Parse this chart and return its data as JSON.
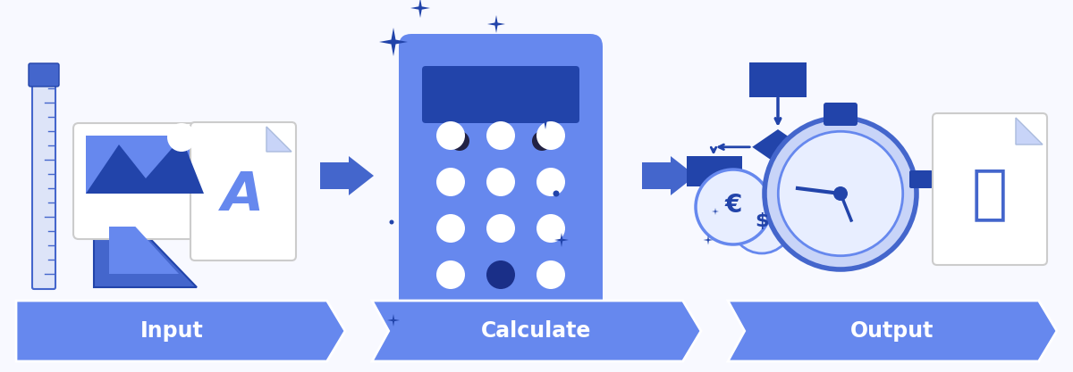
{
  "bg_color": "#f8f9ff",
  "banner_color": "#6688ee",
  "banner_text_color": "#ffffff",
  "banner_labels": [
    "Input",
    "Calculate",
    "Output"
  ],
  "icon_blue_dark": "#2244aa",
  "icon_blue_mid": "#4466cc",
  "icon_blue_light": "#6688ee",
  "icon_blue_calc": "#5577dd",
  "icon_blue_pale": "#c8d4f8",
  "white": "#ffffff",
  "sparkle_color": "#2244aa",
  "gray_light": "#e8ecf8"
}
